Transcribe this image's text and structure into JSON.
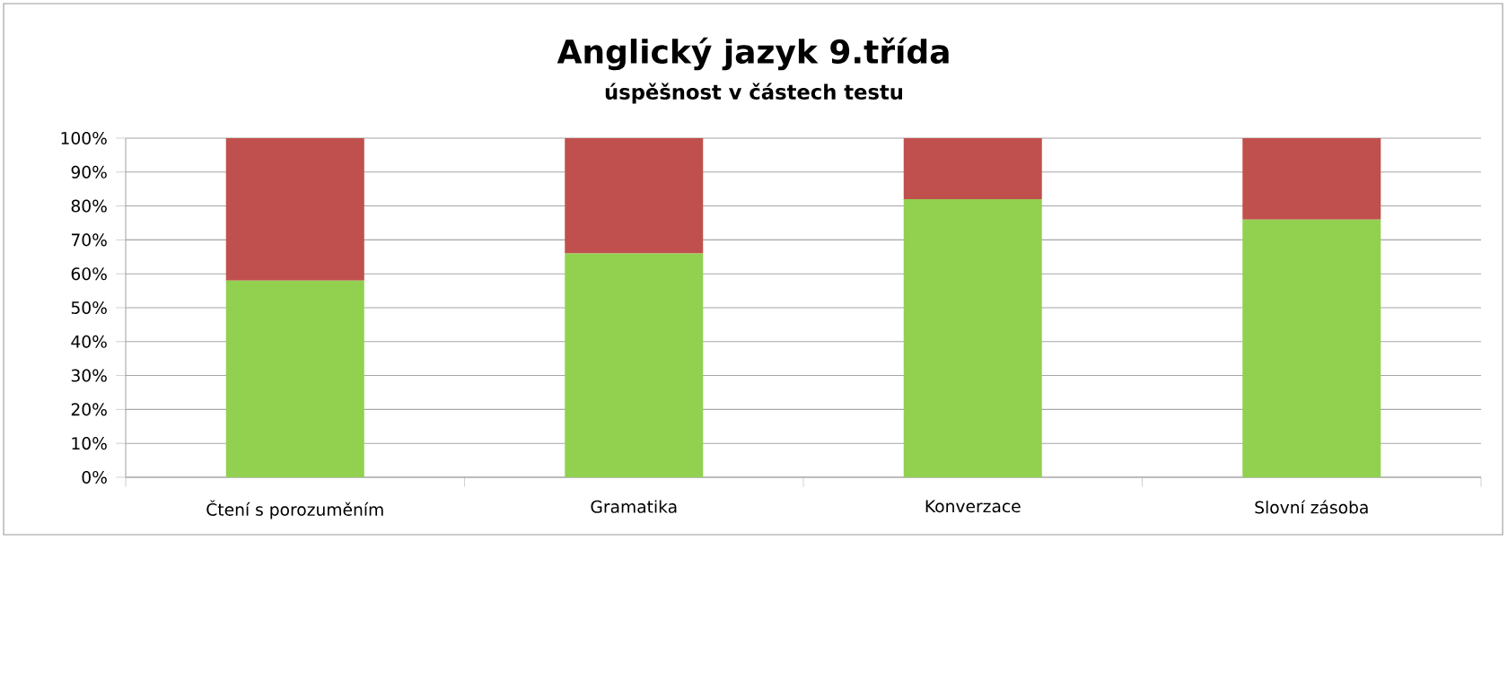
{
  "chart_data": {
    "type": "bar",
    "stacked": true,
    "title": "Anglický jazyk 9.třída",
    "subtitle": "úspěšnost v částech testu",
    "categories": [
      "Čtení s porozuměním",
      "Gramatika",
      "Konverzace",
      "Slovní zásoba"
    ],
    "series": [
      {
        "color": "#92d050",
        "values": [
          58,
          66,
          82,
          76
        ]
      },
      {
        "color": "#c0504d",
        "values": [
          42,
          34,
          18,
          24
        ]
      }
    ],
    "ylim": [
      0,
      100
    ],
    "yticks": [
      {
        "value": 0,
        "label": "0%"
      },
      {
        "value": 10,
        "label": "10%"
      },
      {
        "value": 20,
        "label": "20%"
      },
      {
        "value": 30,
        "label": "30%"
      },
      {
        "value": 40,
        "label": "40%"
      },
      {
        "value": 50,
        "label": "50%"
      },
      {
        "value": 60,
        "label": "60%"
      },
      {
        "value": 70,
        "label": "70%"
      },
      {
        "value": 80,
        "label": "80%"
      },
      {
        "value": 90,
        "label": "90%"
      },
      {
        "value": 100,
        "label": "100%"
      }
    ],
    "grid": "y"
  }
}
